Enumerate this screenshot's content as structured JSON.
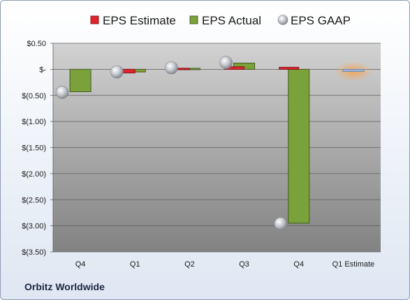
{
  "company": "Orbitz Worldwide",
  "chart_data": {
    "type": "bar",
    "categories": [
      "Q4",
      "Q1",
      "Q2",
      "Q3",
      "Q4",
      "Q1 Estimate"
    ],
    "ylim": [
      -3.5,
      0.5
    ],
    "yticks": [
      0.5,
      0,
      -0.5,
      -1.0,
      -1.5,
      -2.0,
      -2.5,
      -3.0,
      -3.5
    ],
    "ytick_labels": [
      "$0.50",
      "$-",
      "$(0.50)",
      "$(1.00)",
      "$(1.50)",
      "$(2.00)",
      "$(2.50)",
      "$(3.00)",
      "$(3.50)"
    ],
    "grid": true,
    "legend_position": "top",
    "series": [
      {
        "name": "EPS Estimate",
        "type": "bar",
        "color": "#e0242c",
        "values": [
          null,
          -0.07,
          0.02,
          0.05,
          0.04,
          -0.04
        ]
      },
      {
        "name": "EPS Actual",
        "type": "bar",
        "color": "#7ba23a",
        "values": [
          -0.43,
          -0.05,
          0.02,
          0.12,
          -2.95,
          null
        ]
      },
      {
        "name": "EPS GAAP",
        "type": "scatter",
        "color": "#b8bcc2",
        "values": [
          -0.44,
          -0.05,
          0.03,
          0.13,
          -2.96,
          null
        ]
      }
    ],
    "highlight_color": "#f5a656",
    "estimate_bar_color": "#9cb8e0"
  }
}
